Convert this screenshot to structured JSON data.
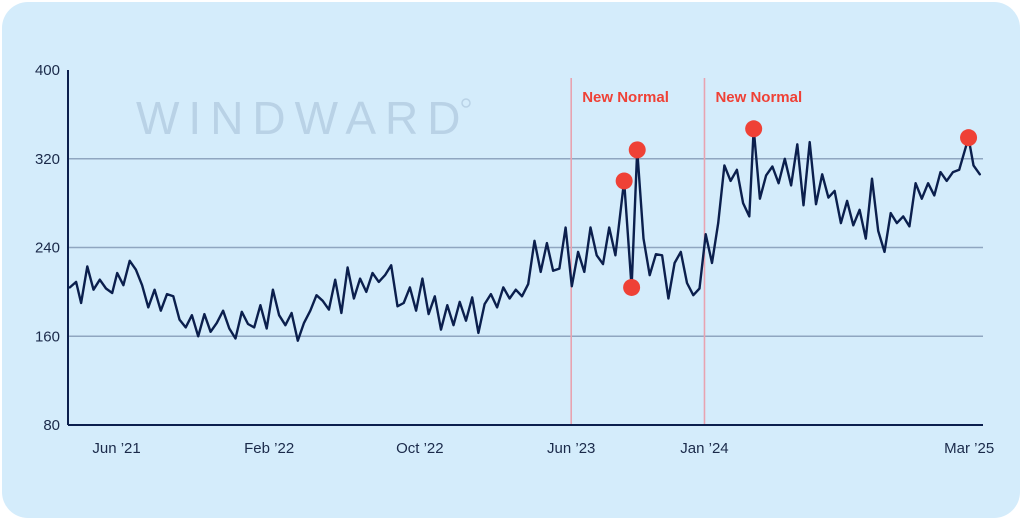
{
  "chart_data": {
    "type": "line",
    "title": "",
    "xlabel": "",
    "ylabel": "",
    "ylim": [
      80,
      400
    ],
    "y_ticks": [
      80,
      160,
      240,
      320,
      400
    ],
    "y_gridlines": [
      160,
      240,
      320
    ],
    "x_ticks": [
      {
        "label": "Jun ’21",
        "date": "2021-06-01"
      },
      {
        "label": "Feb ’22",
        "date": "2022-02-01"
      },
      {
        "label": "Oct ’22",
        "date": "2022-10-01"
      },
      {
        "label": "Jun ’23",
        "date": "2023-06-01"
      },
      {
        "label": "Jan ’24",
        "date": "2024-01-01"
      },
      {
        "label": "Mar ’25",
        "date": "2025-03-01"
      }
    ],
    "x_range": [
      "2021-03-15",
      "2025-03-20"
    ],
    "color": "#0b1f4d",
    "highlight_color": "#ef4136",
    "annotations": [
      {
        "label": "New Normal",
        "date": "2023-06-01"
      },
      {
        "label": "New Normal",
        "date": "2024-01-01"
      }
    ],
    "highlighted_points": [
      {
        "date": "2023-08-25",
        "value": 300
      },
      {
        "date": "2023-09-06",
        "value": 204
      },
      {
        "date": "2023-09-15",
        "value": 328
      },
      {
        "date": "2024-03-20",
        "value": 347
      },
      {
        "date": "2025-02-28",
        "value": 339
      }
    ],
    "series": [
      {
        "points": [
          [
            "2021-03-18",
            204
          ],
          [
            "2021-03-28",
            209
          ],
          [
            "2021-04-05",
            190
          ],
          [
            "2021-04-15",
            223
          ],
          [
            "2021-04-25",
            202
          ],
          [
            "2021-05-05",
            211
          ],
          [
            "2021-05-15",
            203
          ],
          [
            "2021-05-25",
            199
          ],
          [
            "2021-06-02",
            217
          ],
          [
            "2021-06-12",
            206
          ],
          [
            "2021-06-22",
            228
          ],
          [
            "2021-07-02",
            220
          ],
          [
            "2021-07-12",
            206
          ],
          [
            "2021-07-22",
            186
          ],
          [
            "2021-08-01",
            202
          ],
          [
            "2021-08-11",
            183
          ],
          [
            "2021-08-21",
            198
          ],
          [
            "2021-08-31",
            196
          ],
          [
            "2021-09-10",
            175
          ],
          [
            "2021-09-20",
            168
          ],
          [
            "2021-09-30",
            179
          ],
          [
            "2021-10-10",
            160
          ],
          [
            "2021-10-20",
            180
          ],
          [
            "2021-10-30",
            164
          ],
          [
            "2021-11-09",
            172
          ],
          [
            "2021-11-19",
            183
          ],
          [
            "2021-11-29",
            167
          ],
          [
            "2021-12-09",
            158
          ],
          [
            "2021-12-19",
            182
          ],
          [
            "2021-12-29",
            171
          ],
          [
            "2022-01-08",
            168
          ],
          [
            "2022-01-18",
            188
          ],
          [
            "2022-01-28",
            167
          ],
          [
            "2022-02-07",
            202
          ],
          [
            "2022-02-17",
            179
          ],
          [
            "2022-02-27",
            170
          ],
          [
            "2022-03-09",
            181
          ],
          [
            "2022-03-19",
            156
          ],
          [
            "2022-03-29",
            172
          ],
          [
            "2022-04-08",
            183
          ],
          [
            "2022-04-18",
            197
          ],
          [
            "2022-04-28",
            192
          ],
          [
            "2022-05-08",
            184
          ],
          [
            "2022-05-18",
            211
          ],
          [
            "2022-05-28",
            181
          ],
          [
            "2022-06-07",
            222
          ],
          [
            "2022-06-17",
            194
          ],
          [
            "2022-06-27",
            212
          ],
          [
            "2022-07-07",
            200
          ],
          [
            "2022-07-17",
            217
          ],
          [
            "2022-07-27",
            209
          ],
          [
            "2022-08-06",
            215
          ],
          [
            "2022-08-16",
            224
          ],
          [
            "2022-08-26",
            187
          ],
          [
            "2022-09-05",
            190
          ],
          [
            "2022-09-15",
            204
          ],
          [
            "2022-09-25",
            183
          ],
          [
            "2022-10-05",
            212
          ],
          [
            "2022-10-15",
            180
          ],
          [
            "2022-10-25",
            196
          ],
          [
            "2022-11-04",
            166
          ],
          [
            "2022-11-14",
            188
          ],
          [
            "2022-11-24",
            170
          ],
          [
            "2022-12-04",
            191
          ],
          [
            "2022-12-14",
            174
          ],
          [
            "2022-12-24",
            195
          ],
          [
            "2023-01-03",
            163
          ],
          [
            "2023-01-13",
            189
          ],
          [
            "2023-01-23",
            198
          ],
          [
            "2023-02-02",
            186
          ],
          [
            "2023-02-12",
            204
          ],
          [
            "2023-02-22",
            194
          ],
          [
            "2023-03-04",
            202
          ],
          [
            "2023-03-14",
            196
          ],
          [
            "2023-03-24",
            207
          ],
          [
            "2023-04-03",
            246
          ],
          [
            "2023-04-13",
            218
          ],
          [
            "2023-04-23",
            244
          ],
          [
            "2023-05-03",
            219
          ],
          [
            "2023-05-13",
            221
          ],
          [
            "2023-05-23",
            258
          ],
          [
            "2023-06-02",
            205
          ],
          [
            "2023-06-12",
            236
          ],
          [
            "2023-06-22",
            218
          ],
          [
            "2023-07-02",
            258
          ],
          [
            "2023-07-12",
            233
          ],
          [
            "2023-07-22",
            225
          ],
          [
            "2023-08-01",
            258
          ],
          [
            "2023-08-11",
            233
          ],
          [
            "2023-08-25",
            300
          ],
          [
            "2023-09-06",
            204
          ],
          [
            "2023-09-15",
            328
          ],
          [
            "2023-09-25",
            248
          ],
          [
            "2023-10-05",
            215
          ],
          [
            "2023-10-15",
            234
          ],
          [
            "2023-10-25",
            233
          ],
          [
            "2023-11-04",
            194
          ],
          [
            "2023-11-14",
            226
          ],
          [
            "2023-11-24",
            236
          ],
          [
            "2023-12-04",
            208
          ],
          [
            "2023-12-14",
            197
          ],
          [
            "2023-12-24",
            203
          ],
          [
            "2024-01-03",
            252
          ],
          [
            "2024-01-13",
            226
          ],
          [
            "2024-01-23",
            262
          ],
          [
            "2024-02-02",
            314
          ],
          [
            "2024-02-12",
            300
          ],
          [
            "2024-02-22",
            310
          ],
          [
            "2024-03-03",
            280
          ],
          [
            "2024-03-13",
            268
          ],
          [
            "2024-03-20",
            347
          ],
          [
            "2024-03-30",
            284
          ],
          [
            "2024-04-09",
            305
          ],
          [
            "2024-04-19",
            313
          ],
          [
            "2024-04-29",
            298
          ],
          [
            "2024-05-09",
            320
          ],
          [
            "2024-05-19",
            296
          ],
          [
            "2024-05-29",
            333
          ],
          [
            "2024-06-08",
            278
          ],
          [
            "2024-06-18",
            335
          ],
          [
            "2024-06-28",
            279
          ],
          [
            "2024-07-08",
            306
          ],
          [
            "2024-07-18",
            285
          ],
          [
            "2024-07-28",
            291
          ],
          [
            "2024-08-07",
            262
          ],
          [
            "2024-08-17",
            282
          ],
          [
            "2024-08-27",
            260
          ],
          [
            "2024-09-06",
            274
          ],
          [
            "2024-09-16",
            248
          ],
          [
            "2024-09-26",
            302
          ],
          [
            "2024-10-06",
            255
          ],
          [
            "2024-10-16",
            236
          ],
          [
            "2024-10-26",
            271
          ],
          [
            "2024-11-05",
            262
          ],
          [
            "2024-11-15",
            268
          ],
          [
            "2024-11-25",
            259
          ],
          [
            "2024-12-05",
            298
          ],
          [
            "2024-12-15",
            284
          ],
          [
            "2024-12-25",
            298
          ],
          [
            "2025-01-04",
            287
          ],
          [
            "2025-01-14",
            308
          ],
          [
            "2025-01-24",
            300
          ],
          [
            "2025-02-03",
            308
          ],
          [
            "2025-02-13",
            310
          ],
          [
            "2025-02-28",
            339
          ],
          [
            "2025-03-08",
            314
          ],
          [
            "2025-03-18",
            306
          ]
        ]
      }
    ]
  },
  "brand": {
    "watermark": "WINDWARD"
  }
}
